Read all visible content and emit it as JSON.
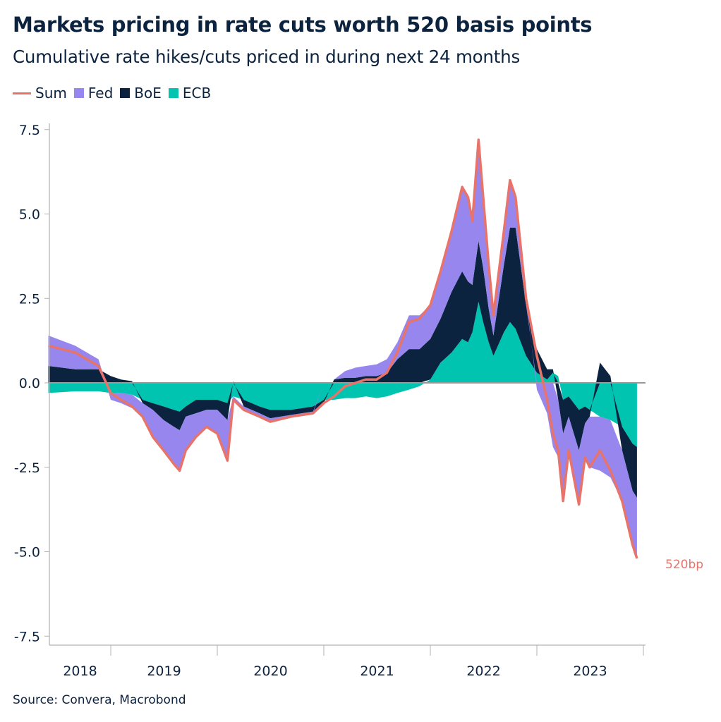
{
  "title": "Markets pricing in rate cuts worth 520 basis points",
  "subtitle": "Cumulative rate hikes/cuts priced in during next 24 months",
  "source": "Source: Convera, Macrobond",
  "colors": {
    "sum": "#e8736a",
    "fed": "#9686ee",
    "boe": "#0c2340",
    "ecb": "#00c4b0",
    "zero_line": "#9a9a9a",
    "text": "#0c2340"
  },
  "legend": [
    {
      "key": "sum",
      "label": "Sum",
      "kind": "line"
    },
    {
      "key": "fed",
      "label": "Fed",
      "kind": "area"
    },
    {
      "key": "boe",
      "label": "BoE",
      "kind": "area"
    },
    {
      "key": "ecb",
      "label": "ECB",
      "kind": "area"
    }
  ],
  "chart_data": {
    "type": "area",
    "stacked": true,
    "title": "Markets pricing in rate cuts worth 520 basis points",
    "subtitle": "Cumulative rate hikes/cuts priced in during next 24 months",
    "ylim": [
      -8.3,
      7.9
    ],
    "yticks": [
      "7.5",
      "5.0",
      "2.5",
      "0.0",
      "-2.5",
      "-5.0",
      "-7.5"
    ],
    "ytick_values": [
      7.5,
      5.0,
      2.5,
      0.0,
      -2.5,
      -5.0,
      -7.5
    ],
    "xlim": [
      "2018-03-15",
      "2024-01-01"
    ],
    "xticks": [
      "2018",
      "2019",
      "2020",
      "2021",
      "2022",
      "2023"
    ],
    "grid": false,
    "legend_position": "top-left",
    "annotation": {
      "text": "520bp",
      "value": -5.2
    },
    "x": [
      "2018-06-01",
      "2018-09-01",
      "2018-11-20",
      "2019-01-01",
      "2019-02-05",
      "2019-03-15",
      "2019-04-20",
      "2019-05-25",
      "2019-07-01",
      "2019-08-05",
      "2019-08-25",
      "2019-09-15",
      "2019-10-20",
      "2019-11-25",
      "2020-01-01",
      "2020-02-05",
      "2020-02-25",
      "2020-04-01",
      "2020-05-25",
      "2020-07-01",
      "2020-09-10",
      "2020-11-25",
      "2021-01-01",
      "2021-02-05",
      "2021-03-15",
      "2021-04-20",
      "2021-05-25",
      "2021-07-01",
      "2021-08-05",
      "2021-09-10",
      "2021-10-20",
      "2021-11-25",
      "2022-01-01",
      "2022-02-05",
      "2022-03-15",
      "2022-04-20",
      "2022-05-10",
      "2022-05-25",
      "2022-06-15",
      "2022-07-01",
      "2022-07-20",
      "2022-08-05",
      "2022-09-10",
      "2022-10-01",
      "2022-10-20",
      "2022-11-25",
      "2023-01-01",
      "2023-02-05",
      "2023-02-25",
      "2023-03-15",
      "2023-04-01",
      "2023-04-20",
      "2023-05-25",
      "2023-06-15",
      "2023-07-01",
      "2023-08-05",
      "2023-09-10",
      "2023-10-20",
      "2023-11-25",
      "2023-12-10"
    ],
    "series": [
      {
        "name": "ECB",
        "key": "ecb",
        "values": [
          -0.3,
          -0.25,
          -0.25,
          -0.3,
          -0.3,
          -0.35,
          -0.5,
          -0.6,
          -0.7,
          -0.8,
          -0.85,
          -0.7,
          -0.5,
          -0.5,
          -0.5,
          -0.6,
          -0.4,
          -0.5,
          -0.7,
          -0.8,
          -0.8,
          -0.7,
          -0.5,
          -0.5,
          -0.45,
          -0.45,
          -0.4,
          -0.45,
          -0.4,
          -0.3,
          -0.2,
          -0.1,
          0.1,
          0.6,
          0.9,
          1.3,
          1.2,
          1.5,
          2.4,
          1.8,
          1.2,
          0.8,
          1.5,
          1.8,
          1.6,
          0.8,
          0.3,
          0.1,
          0.3,
          0.2,
          -0.5,
          -0.4,
          -0.8,
          -0.7,
          -0.8,
          -1.0,
          -1.1,
          -1.3,
          -1.8,
          -1.9
        ]
      },
      {
        "name": "BoE",
        "key": "boe",
        "values": [
          0.5,
          0.4,
          0.4,
          0.2,
          0.1,
          0.05,
          -0.1,
          -0.2,
          -0.4,
          -0.5,
          -0.55,
          -0.3,
          -0.4,
          -0.3,
          -0.3,
          -0.5,
          0.05,
          -0.2,
          -0.2,
          -0.25,
          -0.15,
          -0.15,
          -0.1,
          0.1,
          0.15,
          0.15,
          0.2,
          0.2,
          0.3,
          0.7,
          1.0,
          1.0,
          1.2,
          1.3,
          1.8,
          2.0,
          1.8,
          1.4,
          1.8,
          1.6,
          1.0,
          0.6,
          2.0,
          2.8,
          3.0,
          1.5,
          0.7,
          0.3,
          0.1,
          -0.5,
          -1.0,
          -0.6,
          -1.2,
          -0.5,
          -0.2,
          0.6,
          0.2,
          -0.7,
          -1.4,
          -1.5
        ]
      },
      {
        "name": "Fed",
        "key": "fed",
        "values": [
          0.9,
          0.7,
          0.3,
          -0.2,
          -0.3,
          -0.4,
          -0.4,
          -0.8,
          -0.9,
          -1.1,
          -1.2,
          -1.0,
          -0.7,
          -0.5,
          -0.7,
          -1.2,
          -0.15,
          -0.1,
          -0.1,
          -0.1,
          -0.05,
          -0.05,
          0,
          0,
          0.2,
          0.3,
          0.3,
          0.35,
          0.4,
          0.5,
          1.0,
          1.0,
          1.0,
          1.4,
          1.8,
          2.5,
          2.5,
          1.9,
          3.0,
          2.1,
          1.3,
          0.6,
          1.0,
          1.4,
          0.9,
          0.2,
          -0.2,
          -0.9,
          -1.9,
          -1.7,
          -2.0,
          -1.0,
          -1.6,
          -1.0,
          -1.5,
          -1.6,
          -1.7,
          -1.5,
          -1.6,
          -1.8
        ]
      },
      {
        "name": "Sum",
        "key": "sum",
        "values": [
          1.1,
          0.9,
          0.5,
          -0.3,
          -0.5,
          -0.7,
          -1.0,
          -1.6,
          -2.0,
          -2.4,
          -2.6,
          -2.0,
          -1.6,
          -1.3,
          -1.5,
          -2.3,
          -0.5,
          -0.8,
          -1.0,
          -1.15,
          -1.0,
          -0.9,
          -0.6,
          -0.4,
          -0.1,
          0.0,
          0.1,
          0.1,
          0.3,
          0.9,
          1.8,
          1.9,
          2.3,
          3.3,
          4.5,
          5.8,
          5.5,
          4.8,
          7.2,
          5.5,
          3.5,
          2.0,
          4.5,
          6.0,
          5.5,
          2.5,
          0.8,
          -0.5,
          -1.5,
          -2.0,
          -3.5,
          -2.0,
          -3.6,
          -2.2,
          -2.5,
          -2.0,
          -2.6,
          -3.5,
          -4.8,
          -5.2
        ]
      }
    ]
  }
}
